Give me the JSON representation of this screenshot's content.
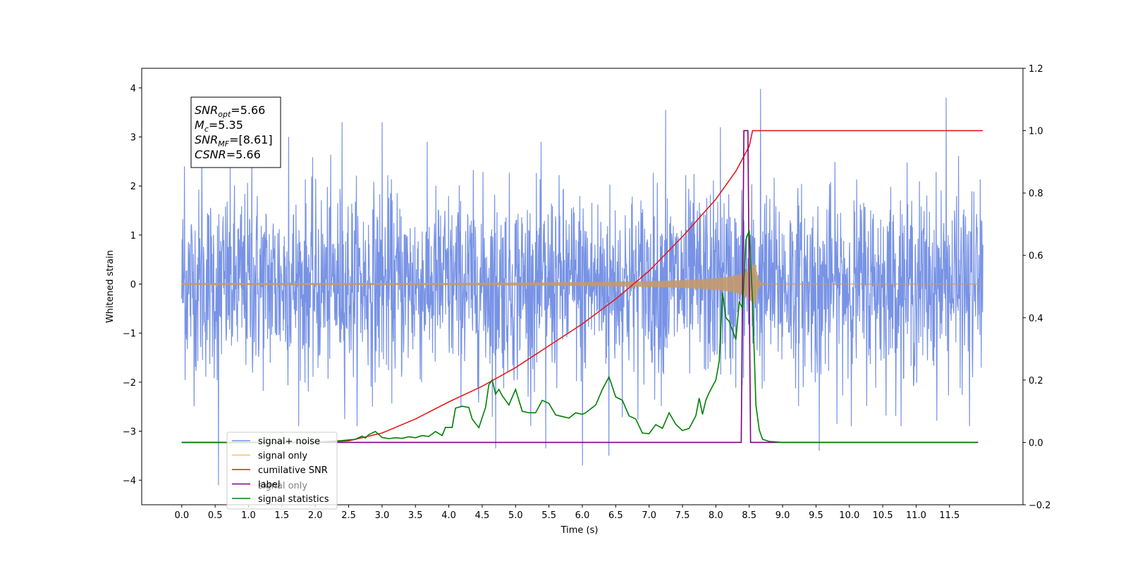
{
  "chart_data": {
    "type": "line",
    "xlabel": "Time (s)",
    "ylabel": "Whitened strain",
    "xlim": [
      -0.6,
      12.6
    ],
    "ylim": [
      -4.5,
      4.4
    ],
    "y2lim": [
      -0.2,
      1.2
    ],
    "x_ticks": [
      0.0,
      0.5,
      1.0,
      1.5,
      2.0,
      2.5,
      3.0,
      3.5,
      4.0,
      4.5,
      5.0,
      5.5,
      6.0,
      6.5,
      7.0,
      7.5,
      8.0,
      8.5,
      9.0,
      9.5,
      10.0,
      10.5,
      11.0,
      11.5
    ],
    "x_tick_labels": [
      "0.0",
      "0.5",
      "1.0",
      "1.5",
      "2.0",
      "2.5",
      "3.0",
      "3.5",
      "4.0",
      "4.5",
      "5.0",
      "5.5",
      "6.0",
      "6.5",
      "7.0",
      "7.5",
      "8.0",
      "8.5",
      "9.0",
      "9.5",
      "10.0",
      "10.5",
      "11.0",
      "11.5"
    ],
    "y_ticks": [
      -4,
      -3,
      -2,
      -1,
      0,
      1,
      2,
      3,
      4
    ],
    "y_tick_labels": [
      "−4",
      "−3",
      "−2",
      "−1",
      "0",
      "1",
      "2",
      "3",
      "4"
    ],
    "y2_ticks": [
      -0.2,
      0.0,
      0.2,
      0.4,
      0.6,
      0.8,
      1.0,
      1.2
    ],
    "y2_tick_labels": [
      "−0.2",
      "0.0",
      "0.2",
      "0.4",
      "0.6",
      "0.8",
      "1.0",
      "1.2"
    ],
    "grid": false,
    "legend_position": "lower-left",
    "legend": [
      "signal+ noise",
      "signal only",
      "cumilative SNR",
      "label",
      "signal statistics"
    ],
    "legend_hidden_label": "signal only",
    "annotation": [
      {
        "name": "SNR",
        "sub": "opt",
        "value": "=5.66"
      },
      {
        "name": "M",
        "sub": "c",
        "value": "=5.35"
      },
      {
        "name": "SNR",
        "sub": "MF",
        "value": "=[8.61]"
      },
      {
        "name": "CSNR",
        "sub": "",
        "value": "=5.66"
      }
    ],
    "series": [
      {
        "name": "signal+ noise",
        "axis": "left",
        "color": "#7893e6",
        "x_range": [
          0.0,
          12.0
        ],
        "band_typical": [
          -1.5,
          1.5
        ],
        "spikes": [
          [
            0.04,
            2.4
          ],
          [
            0.3,
            2.6
          ],
          [
            0.55,
            -4.1
          ],
          [
            1.05,
            2.8
          ],
          [
            1.6,
            3.0
          ],
          [
            2.4,
            3.3
          ],
          [
            3.0,
            3.3
          ],
          [
            4.7,
            -3.35
          ],
          [
            5.45,
            -3.35
          ],
          [
            6.0,
            -3.7
          ],
          [
            6.4,
            -3.5
          ],
          [
            7.25,
            3.55
          ],
          [
            8.07,
            3.2
          ],
          [
            8.67,
            3.98
          ],
          [
            9.55,
            -3.4
          ],
          [
            11.45,
            3.8
          ],
          [
            11.8,
            -2.9
          ]
        ]
      },
      {
        "name": "signal only",
        "axis": "left",
        "color": "#c49a6c",
        "x_range": [
          0.0,
          12.0
        ],
        "envelope": {
          "t_merge": 8.6,
          "peak_amp": 0.4,
          "start_amp": 0.02
        }
      },
      {
        "name": "cumilative SNR",
        "axis": "right",
        "color": "#e31a1c",
        "x": [
          0.0,
          1.0,
          2.0,
          2.5,
          3.0,
          3.5,
          4.0,
          4.5,
          5.0,
          5.5,
          6.0,
          6.5,
          7.0,
          7.5,
          8.0,
          8.3,
          8.5,
          8.55,
          12.0
        ],
        "y": [
          0.0,
          0.0,
          0.0,
          0.005,
          0.03,
          0.075,
          0.13,
          0.18,
          0.24,
          0.31,
          0.38,
          0.46,
          0.55,
          0.66,
          0.78,
          0.87,
          0.95,
          1.0,
          1.0
        ]
      },
      {
        "name": "label",
        "axis": "right",
        "color": "#800080",
        "x": [
          0.0,
          8.38,
          8.42,
          8.48,
          8.52,
          8.57,
          11.93
        ],
        "y": [
          0.0,
          0.0,
          1.0,
          1.0,
          0.0,
          0.0,
          0.0
        ]
      },
      {
        "name": "signal statistics",
        "axis": "right",
        "color": "#008000",
        "x": [
          0.0,
          2.0,
          2.2,
          2.4,
          2.6,
          2.7,
          2.75,
          2.8,
          2.9,
          3.0,
          3.1,
          3.2,
          3.3,
          3.4,
          3.5,
          3.6,
          3.7,
          3.8,
          3.9,
          3.95,
          4.05,
          4.1,
          4.2,
          4.3,
          4.35,
          4.45,
          4.55,
          4.6,
          4.65,
          4.7,
          4.75,
          4.8,
          4.9,
          5.0,
          5.1,
          5.2,
          5.3,
          5.4,
          5.5,
          5.6,
          5.7,
          5.8,
          5.9,
          6.0,
          6.05,
          6.2,
          6.3,
          6.4,
          6.5,
          6.6,
          6.7,
          6.8,
          6.9,
          7.0,
          7.1,
          7.2,
          7.3,
          7.4,
          7.5,
          7.6,
          7.7,
          7.75,
          7.8,
          7.85,
          7.9,
          8.0,
          8.05,
          8.1,
          8.15,
          8.2,
          8.3,
          8.35,
          8.4,
          8.45,
          8.5,
          8.55,
          8.6,
          8.65,
          8.7,
          8.8,
          9.0,
          11.9
        ],
        "y": [
          0.0,
          0.0,
          0.003,
          0.006,
          0.01,
          0.02,
          0.014,
          0.025,
          0.035,
          0.016,
          0.012,
          0.015,
          0.013,
          0.018,
          0.015,
          0.022,
          0.019,
          0.035,
          0.022,
          0.048,
          0.048,
          0.11,
          0.116,
          0.112,
          0.075,
          0.047,
          0.112,
          0.185,
          0.2,
          0.155,
          0.17,
          0.15,
          0.12,
          0.17,
          0.1,
          0.095,
          0.095,
          0.135,
          0.125,
          0.088,
          0.083,
          0.078,
          0.095,
          0.09,
          0.095,
          0.12,
          0.17,
          0.21,
          0.146,
          0.135,
          0.085,
          0.075,
          0.03,
          0.028,
          0.057,
          0.045,
          0.095,
          0.058,
          0.038,
          0.045,
          0.085,
          0.142,
          0.09,
          0.135,
          0.16,
          0.2,
          0.26,
          0.48,
          0.4,
          0.388,
          0.33,
          0.45,
          0.43,
          0.65,
          0.68,
          0.45,
          0.12,
          0.04,
          0.01,
          0.003,
          0.0,
          0.0
        ]
      }
    ]
  }
}
